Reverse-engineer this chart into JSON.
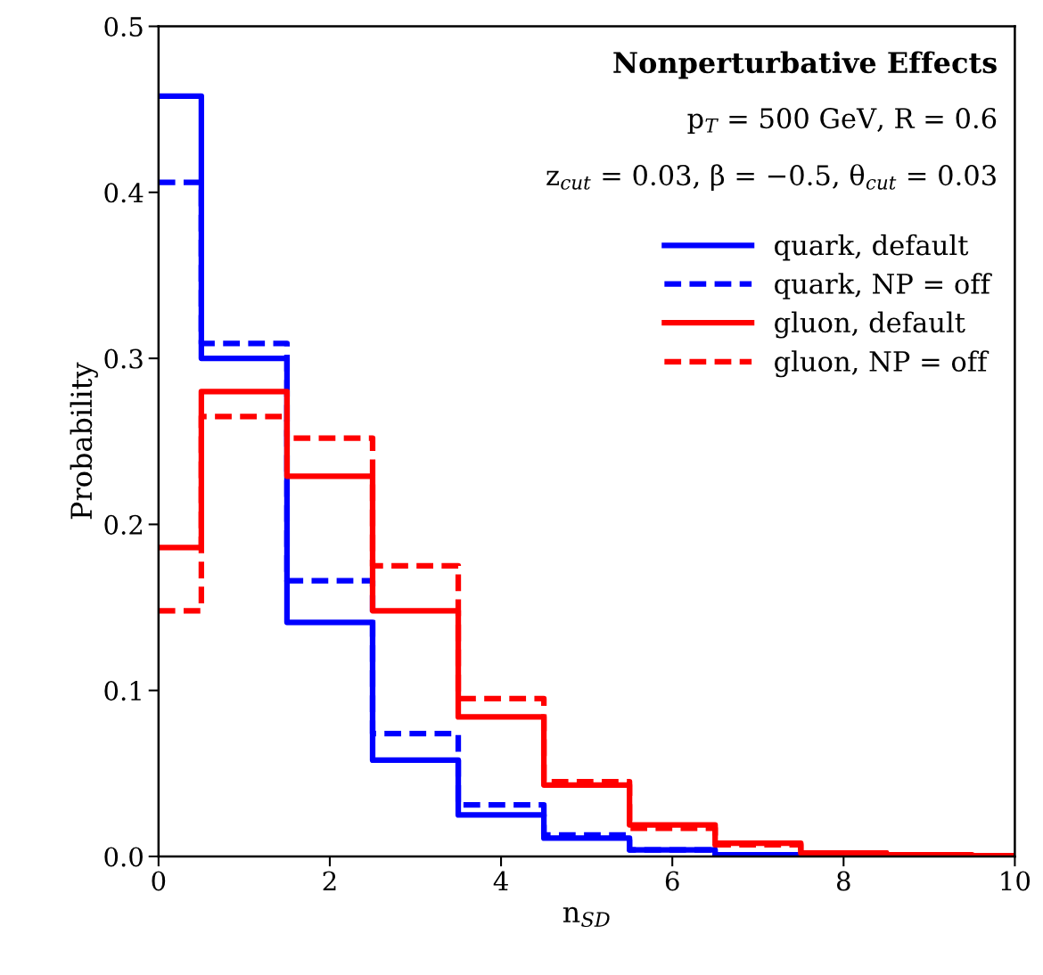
{
  "chart_data": {
    "type": "step",
    "title": "Nonperturbative Effects",
    "annotations": [
      "p$_{T}$ = 500 GeV, R = 0.6",
      "z$_{cut}$ = 0.03, β = −0.5, θ$_{cut}$ = 0.03"
    ],
    "xlabel": "n$_{SD}$",
    "ylabel": "Probability",
    "x": [
      0,
      1,
      2,
      3,
      4,
      5,
      6,
      7,
      8,
      9,
      10
    ],
    "series": [
      {
        "name": "quark, default",
        "color": "#0000ff",
        "line_style": "solid",
        "values": [
          0.458,
          0.3,
          0.141,
          0.058,
          0.025,
          0.011,
          0.004,
          0.001,
          0.0,
          0.0,
          0.0
        ]
      },
      {
        "name": "quark, NP = off",
        "color": "#0000ff",
        "line_style": "dashed",
        "values": [
          0.406,
          0.309,
          0.166,
          0.074,
          0.031,
          0.013,
          0.004,
          0.001,
          0.0,
          0.0,
          0.0
        ]
      },
      {
        "name": "gluon, default",
        "color": "#ff0000",
        "line_style": "solid",
        "values": [
          0.186,
          0.28,
          0.229,
          0.148,
          0.084,
          0.043,
          0.019,
          0.008,
          0.002,
          0.001,
          0.0005
        ]
      },
      {
        "name": "gluon, NP = off",
        "color": "#ff0000",
        "line_style": "dashed",
        "values": [
          0.148,
          0.265,
          0.252,
          0.175,
          0.095,
          0.045,
          0.017,
          0.007,
          0.002,
          0.001,
          0.0005
        ]
      }
    ],
    "xlim": [
      0,
      10
    ],
    "xticks": [
      0,
      2,
      4,
      6,
      8,
      10
    ],
    "ylim": [
      0,
      0.5
    ],
    "yticks": [
      {
        "value": 0,
        "label": "0.0"
      },
      0.1,
      0.2,
      0.3,
      0.4,
      0.5
    ],
    "grid": false,
    "legend": "top right"
  }
}
